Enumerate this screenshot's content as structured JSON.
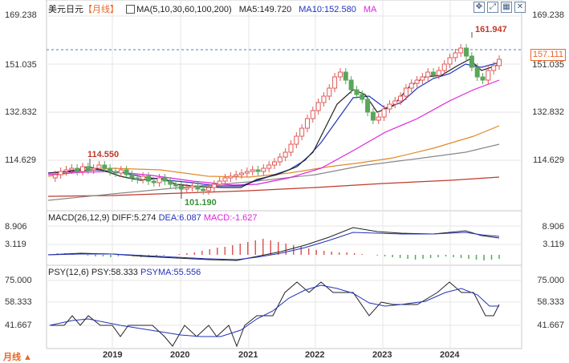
{
  "toolbar": {
    "symbol": "美元日元",
    "period": "【月线】",
    "ma_params": "MA(5,10,30,60,100,200)",
    "ma5": "MA5:149.720",
    "ma10": "MA10:152.580",
    "ma": "MA",
    "icons": [
      "move-icon",
      "fullscreen-icon",
      "grid-icon",
      "close-icon"
    ]
  },
  "colors": {
    "up": "#e05858",
    "down": "#5aa65a",
    "ma5": "#222222",
    "ma10": "#2233bb",
    "ma30": "#dd22dd",
    "ma60": "#e08a2a",
    "ma100": "#888888",
    "ma200": "#c0392b",
    "accent": "#e8672a"
  },
  "price_axis": [
    "169.238",
    "151.035",
    "132.832",
    "114.629"
  ],
  "current_price": "157.111",
  "annotations": {
    "high_max": "161.947",
    "high_early": "114.550",
    "low": "101.190"
  },
  "macd": {
    "title": "MACD(26,12,9)",
    "diff": "DIFF:5.274",
    "dea": "DEA:6.087",
    "macd": "MACD:-1.627",
    "axis": [
      "8.906",
      "3.119"
    ]
  },
  "psy": {
    "title": "PSY(12,6)",
    "psy": "PSY:58.333",
    "psyma": "PSYMA:55.556",
    "axis": [
      "75.000",
      "58.333",
      "41.667"
    ]
  },
  "x_axis": [
    "2019",
    "2020",
    "2021",
    "2022",
    "2023",
    "2024"
  ],
  "period_bottom": "月线 ▲"
}
